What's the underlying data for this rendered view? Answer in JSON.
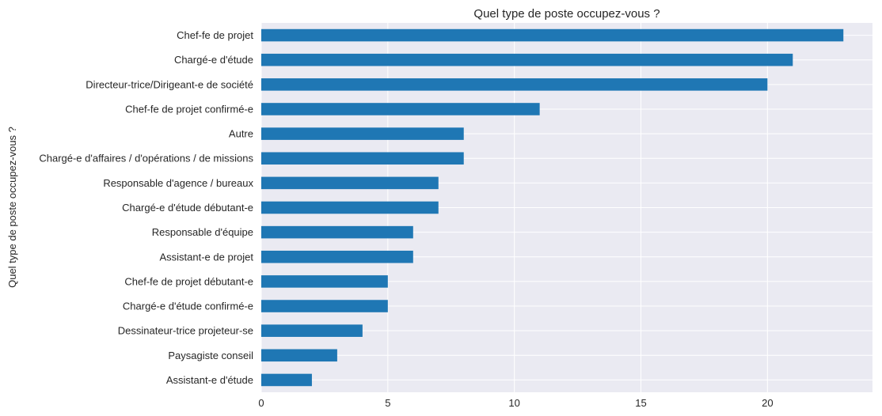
{
  "chart_data": {
    "type": "bar",
    "orientation": "horizontal",
    "title": "Quel type de poste occupez-vous ?",
    "ylabel": "Quel type de poste occupez-vous ?",
    "xlabel": "",
    "categories": [
      "Chef-fe de projet",
      "Chargé-e d'étude",
      "Directeur-trice/Dirigeant-e de société",
      "Chef-fe de projet confirmé-e",
      "Autre",
      "Chargé-e d'affaires / d'opérations / de missions",
      "Responsable d'agence / bureaux",
      "Chargé-e d'étude débutant-e",
      "Responsable d'équipe",
      "Assistant-e de projet",
      "Chef-fe de projet débutant-e",
      "Chargé-e d'étude confirmé-e",
      "Dessinateur-trice projeteur-se",
      "Paysagiste conseil",
      "Assistant-e d'étude"
    ],
    "values": [
      23,
      21,
      20,
      11,
      8,
      8,
      7,
      7,
      6,
      6,
      5,
      5,
      4,
      3,
      2
    ],
    "xlim": [
      0,
      24.15
    ],
    "xticks": [
      0,
      5,
      10,
      15,
      20
    ],
    "grid": true,
    "style": "seaborn-darkgrid",
    "colors": {
      "bar": "#1f77b4",
      "background": "#eaeaf2",
      "grid": "#ffffff"
    }
  }
}
